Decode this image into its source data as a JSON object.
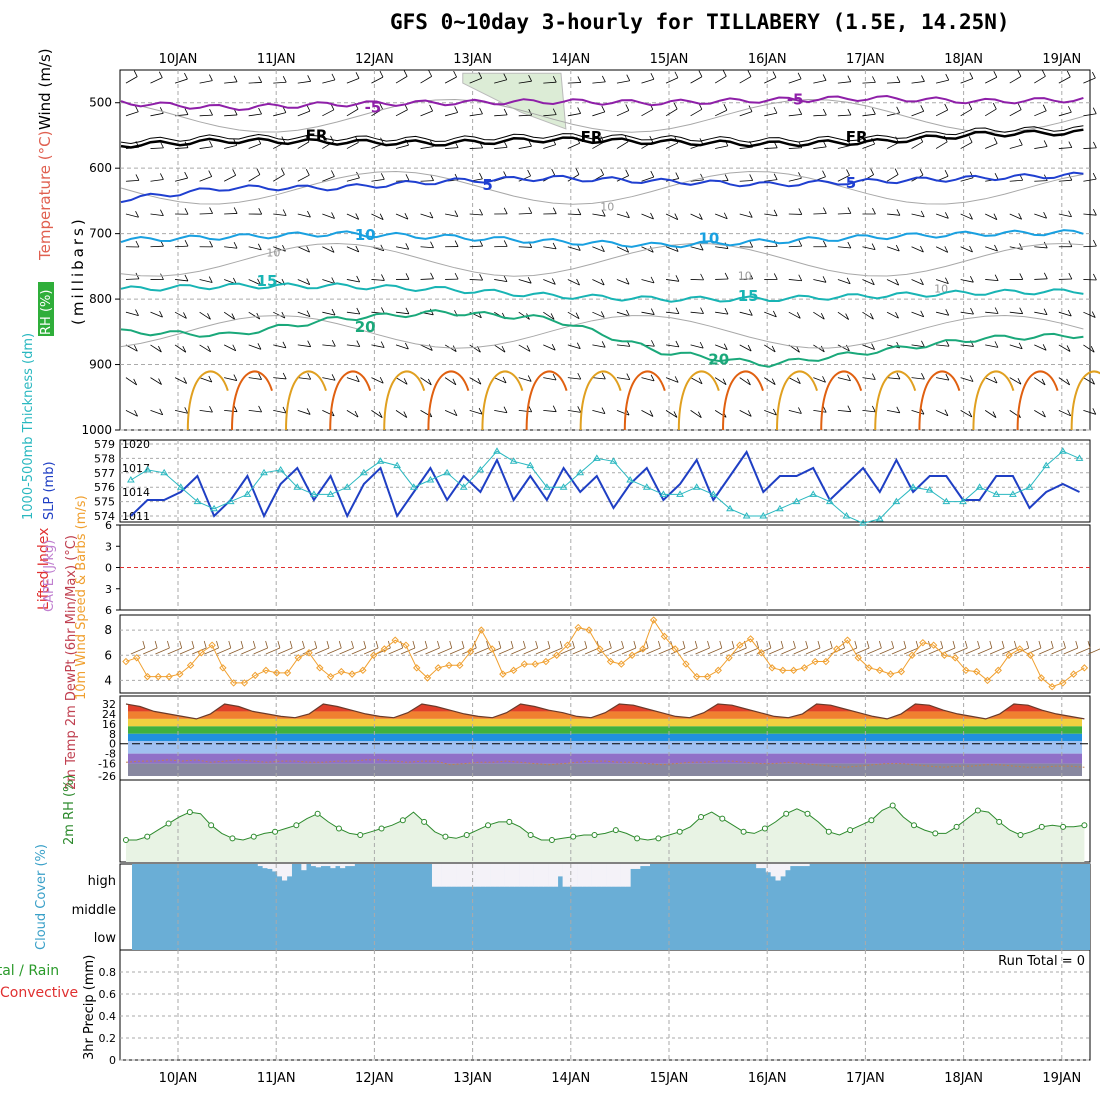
{
  "title": "GFS 0~10day 3-hourly for TILLABERY (1.5E, 14.25N)",
  "colors": {
    "purple": "#8e1fa8",
    "black": "#000000",
    "blue": "#1f3fd0",
    "lightblue": "#19a0e0",
    "teal": "#18b4b4",
    "green": "#1aa87a",
    "orange": "#e0a020",
    "darkorange": "#e06010",
    "grid": "#aaaaaa",
    "cloud": "#6aaed6",
    "rh_fill": "#e8f3e4",
    "rh_line": "#2d8a2d",
    "slp": "#1f3fc4",
    "thickness": "#2ab8c0",
    "wind10": "#f0a030"
  },
  "chart_data": [
    {
      "panel": "upper-air",
      "type": "line",
      "days": [
        "10JAN",
        "11JAN",
        "12JAN",
        "13JAN",
        "14JAN",
        "15JAN",
        "16JAN",
        "17JAN",
        "18JAN",
        "19JAN"
      ],
      "y_ticks": [
        500,
        600,
        700,
        800,
        900,
        1000
      ],
      "ylim": [
        450,
        1000
      ],
      "ylabel": "(millibars)",
      "side_labels": [
        "Wind (m/s)",
        "Temperature (°C)",
        "RH (%)"
      ],
      "contours": [
        {
          "label": "-5",
          "pressure": [
            500,
            508,
            502,
            500,
            498,
            500,
            496,
            493,
            498,
            495
          ]
        },
        {
          "label": "FR",
          "pressure": [
            565,
            558,
            560,
            562,
            556,
            560,
            563,
            560,
            548,
            545
          ]
        },
        {
          "label": "5",
          "pressure": [
            648,
            630,
            630,
            620,
            615,
            620,
            625,
            620,
            615,
            610
          ]
        },
        {
          "label": "10",
          "pressure": [
            710,
            705,
            700,
            705,
            712,
            718,
            712,
            705,
            700,
            698
          ]
        },
        {
          "label": "15",
          "pressure": [
            785,
            780,
            780,
            785,
            795,
            800,
            800,
            795,
            790,
            788
          ]
        },
        {
          "label": "20",
          "pressure": [
            850,
            855,
            830,
            820,
            830,
            880,
            900,
            880,
            860,
            855
          ]
        }
      ],
      "contour_label_days": [
        2.9,
        2.7,
        2.2,
        1.5,
        1.3,
        1.8,
        5.3,
        4.8,
        4.4,
        6.6,
        5.9,
        5.4
      ],
      "rh_labels": [
        "10",
        "10",
        "10",
        "10"
      ]
    },
    {
      "panel": "slp-thickness",
      "type": "line",
      "left_ticks": [
        574,
        575,
        576,
        577,
        578,
        579
      ],
      "right_ticks": [
        1011,
        1014,
        1017,
        1020
      ],
      "ylabel_left": "1000-500mb Thickness (dm)",
      "ylabel_right": "SLP (mb)",
      "slp_mb": [
        1011,
        1013,
        1013,
        1014,
        1016,
        1011,
        1013,
        1016,
        1011,
        1015,
        1017,
        1013,
        1016,
        1011,
        1015,
        1017,
        1011,
        1014,
        1017,
        1013,
        1016,
        1014,
        1018,
        1013,
        1016,
        1013,
        1017,
        1014,
        1016,
        1012,
        1015,
        1017,
        1013,
        1015,
        1018,
        1013,
        1016,
        1019,
        1014,
        1016,
        1016,
        1017,
        1013,
        1015,
        1017,
        1014,
        1018,
        1014,
        1016,
        1016,
        1013,
        1013,
        1016,
        1016,
        1012,
        1014,
        1015,
        1014
      ],
      "thickness_dm": [
        576.5,
        577.2,
        577,
        576,
        575,
        574.5,
        575,
        575.5,
        577,
        577.2,
        576,
        575.5,
        575.5,
        576,
        577,
        577.8,
        577.5,
        576,
        576.5,
        577,
        576,
        577.2,
        578.5,
        577.8,
        577.5,
        576,
        576,
        577,
        578,
        577.8,
        576.5,
        576,
        575.5,
        575.5,
        576,
        575.5,
        574.5,
        574,
        574,
        574.5,
        575,
        575.5,
        575,
        574,
        573.5,
        573.8,
        575,
        576,
        575.8,
        575,
        575,
        576,
        575.5,
        575.5,
        576,
        577.5,
        578.5,
        578
      ]
    },
    {
      "panel": "cape-lifted",
      "type": "line",
      "ticks": [
        -6,
        -3,
        0,
        3,
        6
      ],
      "tick_labels": [
        "6",
        "3",
        "0",
        "3",
        "6"
      ],
      "ylabel_left": "Lifted Index",
      "ylabel_right": "CAPE (J/kg)",
      "lifted_index_zero": true
    },
    {
      "panel": "wind10",
      "type": "line",
      "ticks": [
        4,
        6,
        8
      ],
      "ylim": [
        3,
        9.2
      ],
      "ylabel": "10m Wind Speed & Barbs (m/s)",
      "speed_ms": [
        5.5,
        5.8,
        4.3,
        4.3,
        4.3,
        4.5,
        5.2,
        6.2,
        6.8,
        5.0,
        3.8,
        3.8,
        4.4,
        4.8,
        4.6,
        4.6,
        5.8,
        6.2,
        5.0,
        4.3,
        4.7,
        4.5,
        4.8,
        6.0,
        6.5,
        7.2,
        6.8,
        5.0,
        4.2,
        5.0,
        5.2,
        5.2,
        6.3,
        8.0,
        6.5,
        4.5,
        4.8,
        5.3,
        5.3,
        5.5,
        6.0,
        6.8,
        8.2,
        8.0,
        6.5,
        5.5,
        5.3,
        6.0,
        6.5,
        8.8,
        7.5,
        6.5,
        5.3,
        4.3,
        4.3,
        4.8,
        5.8,
        6.8,
        7.3,
        6.2,
        5.0,
        4.8,
        4.8,
        5.0,
        5.5,
        5.5,
        6.5,
        7.2,
        5.8,
        5.0,
        4.8,
        4.5,
        4.7,
        6.0,
        7.0,
        6.8,
        6.0,
        5.8,
        4.8,
        4.7,
        4.0,
        4.8,
        6.0,
        6.5,
        6.0,
        4.2,
        3.5,
        3.8,
        4.5,
        5.0
      ]
    },
    {
      "panel": "temp2m",
      "type": "area",
      "ticks": [
        32,
        24,
        16,
        8,
        0,
        -8,
        -16,
        -26
      ],
      "ylabel": "2m Temp 2m DewPt (6hr Min/Max) (°C)",
      "temp_c": [
        32,
        30,
        26,
        24,
        22,
        20,
        24,
        32,
        30,
        26,
        24,
        22,
        21,
        24,
        32,
        30,
        27,
        24,
        22,
        21,
        25,
        32,
        30,
        27,
        24,
        22,
        21,
        25,
        32,
        30,
        27,
        25,
        22,
        21,
        25,
        32,
        31,
        28,
        25,
        22,
        21,
        25,
        32,
        31,
        28,
        25,
        22,
        21,
        24,
        32,
        31,
        28,
        25,
        22,
        20,
        24,
        32,
        31,
        27,
        24,
        22,
        20,
        24,
        32,
        31,
        27,
        24,
        22,
        20
      ],
      "dewpt_c": [
        -15,
        -14,
        -14,
        -13,
        -14,
        -13,
        -15,
        -14,
        -13,
        -14,
        -15,
        -14,
        -14,
        -15,
        -15,
        -14,
        -14,
        -13,
        -13,
        -14,
        -15,
        -14,
        -14,
        -17,
        -16,
        -15,
        -15,
        -14,
        -15,
        -16,
        -17,
        -16,
        -15,
        -14,
        -14,
        -15,
        -15,
        -16,
        -17,
        -16,
        -15,
        -15,
        -14,
        -14,
        -15,
        -16,
        -16,
        -15,
        -16,
        -17,
        -18,
        -19,
        -18,
        -17,
        -16,
        -16,
        -17,
        -18,
        -19,
        -18,
        -18,
        -17,
        -17,
        -18,
        -19,
        -19,
        -18,
        -18,
        -19
      ]
    },
    {
      "panel": "rh2m",
      "type": "area",
      "ylabel": "2m RH (%)",
      "rh_pct": [
        22,
        22,
        26,
        34,
        42,
        50,
        56,
        54,
        40,
        30,
        24,
        22,
        26,
        30,
        32,
        36,
        40,
        48,
        54,
        44,
        36,
        30,
        28,
        32,
        36,
        40,
        46,
        56,
        44,
        32,
        26,
        24,
        28,
        34,
        40,
        44,
        44,
        38,
        28,
        22,
        22,
        24,
        26,
        28,
        28,
        30,
        34,
        30,
        24,
        22,
        24,
        28,
        32,
        38,
        50,
        56,
        48,
        40,
        32,
        30,
        36,
        44,
        54,
        60,
        54,
        44,
        32,
        28,
        34,
        40,
        46,
        58,
        64,
        50,
        40,
        34,
        30,
        30,
        38,
        48,
        58,
        56,
        44,
        34,
        28,
        32,
        38,
        40,
        38,
        38,
        40
      ]
    },
    {
      "panel": "cloud",
      "type": "bar",
      "ylabel": "Cloud Cover (%)",
      "level_labels": [
        "high",
        "middle",
        "low"
      ],
      "high_layer": [
        0,
        0,
        0,
        0,
        0,
        0,
        0,
        0,
        0,
        0,
        0,
        0,
        0,
        0,
        0,
        0,
        0,
        0,
        0,
        0,
        0,
        0,
        0,
        0,
        0,
        0,
        5,
        10,
        12,
        18,
        30,
        40,
        30,
        0,
        0,
        15,
        0,
        5,
        8,
        5,
        5,
        10,
        5,
        10,
        5,
        5,
        0,
        0,
        0,
        0,
        0,
        0,
        0,
        0,
        0,
        0,
        0,
        0,
        0,
        0,
        0,
        0,
        55,
        55,
        55,
        55,
        55,
        55,
        55,
        55,
        55,
        55,
        55,
        55,
        55,
        55,
        55,
        55,
        55,
        55,
        55,
        55,
        55,
        55,
        55,
        55,
        55,
        55,
        30,
        55,
        55,
        55,
        55,
        55,
        55,
        55,
        55,
        55,
        55,
        55,
        55,
        55,
        55,
        12,
        12,
        5,
        5,
        0,
        0,
        0,
        0,
        0,
        0,
        0,
        0,
        0,
        0,
        0,
        0,
        0,
        0,
        0,
        0,
        0,
        0,
        0,
        0,
        0,
        0,
        10,
        10,
        20,
        30,
        40,
        30,
        15,
        5,
        5,
        5,
        5,
        0,
        0,
        0,
        0,
        0,
        0,
        0,
        0,
        0,
        0,
        0,
        0,
        0,
        0,
        0,
        0,
        0,
        0,
        0,
        0,
        0,
        0,
        0,
        0,
        0,
        0,
        0,
        0,
        0,
        0,
        0,
        0,
        0,
        0,
        0,
        0,
        0,
        0,
        0,
        0,
        0,
        0,
        0,
        0,
        0,
        0,
        0,
        0,
        0,
        0,
        0,
        0,
        0,
        0,
        0,
        0,
        0,
        0
      ]
    },
    {
      "panel": "precip",
      "type": "bar",
      "ylabel": "3hr Precip (mm)",
      "left_labels": [
        "Total / Rain",
        "Convective"
      ],
      "ticks": [
        0,
        0.2,
        0.4,
        0.6,
        0.8
      ],
      "tick_labels": [
        "0",
        "0.2",
        "0.4",
        "0.6",
        "0.8"
      ],
      "ylim": [
        0,
        1
      ],
      "run_total_label": "Run Total = 0",
      "values": []
    }
  ]
}
